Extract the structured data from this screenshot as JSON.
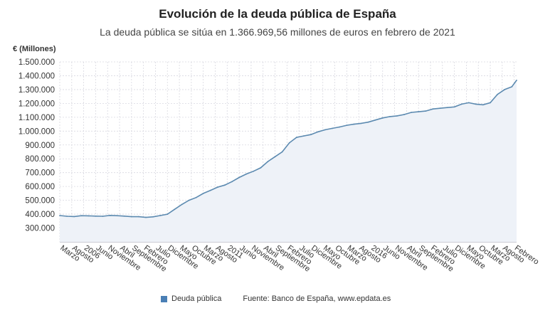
{
  "chart_data": {
    "type": "area",
    "title": "Evolución de la deuda pública de España",
    "subtitle": "La deuda pública se sitúa en 1.366.969,56 millones de euros en febrero de 2021",
    "ylabel": "€ (Millones)",
    "ylim": [
      200000,
      1500000
    ],
    "yticks": [
      300000,
      400000,
      500000,
      600000,
      700000,
      800000,
      900000,
      1000000,
      1100000,
      1200000,
      1300000,
      1400000,
      1500000
    ],
    "ytick_labels": [
      "300.000",
      "400.000",
      "500.000",
      "600.000",
      "700.000",
      "800.000",
      "900.000",
      "1.000.000",
      "1.100.000",
      "1.200.000",
      "1.300.000",
      "1.400.000",
      "1.500.000"
    ],
    "x_start": "2005-03",
    "x_end": "2021-02",
    "xtick_months": [
      "2005-03",
      "2005-08",
      "2006-01",
      "2006-06",
      "2006-11",
      "2007-04",
      "2007-09",
      "2008-02",
      "2008-07",
      "2008-12",
      "2009-05",
      "2009-10",
      "2010-03",
      "2010-08",
      "2011-01",
      "2011-06",
      "2011-11",
      "2012-04",
      "2012-09",
      "2013-02",
      "2013-07",
      "2013-12",
      "2014-05",
      "2014-10",
      "2015-03",
      "2015-08",
      "2016-01",
      "2016-06",
      "2016-11",
      "2017-04",
      "2017-09",
      "2018-02",
      "2018-07",
      "2018-12",
      "2019-05",
      "2019-10",
      "2020-03",
      "2020-08",
      "2021-01"
    ],
    "xtick_labels": [
      "Marzo",
      "Agosto",
      "2006",
      "Junio",
      "Noviembre",
      "Abril",
      "Septiembre",
      "Febrero",
      "Julio",
      "Diciembre",
      "Mayo",
      "Octubre",
      "Marzo",
      "Agosto",
      "2011",
      "Junio",
      "Noviembre",
      "Abril",
      "Septiembre",
      "Febrero",
      "Julio",
      "Diciembre",
      "Mayo",
      "Octubre",
      "Marzo",
      "Agosto",
      "2016",
      "Junio",
      "Noviembre",
      "Abril",
      "Septiembre",
      "Febrero",
      "Julio",
      "Diciembre",
      "Mayo",
      "Octubre",
      "Marzo",
      "Agosto",
      "Febrero"
    ],
    "series": [
      {
        "name": "Deuda pública",
        "points": [
          [
            "2005-03",
            390000
          ],
          [
            "2005-06",
            385000
          ],
          [
            "2005-09",
            383000
          ],
          [
            "2005-12",
            389000
          ],
          [
            "2006-03",
            388000
          ],
          [
            "2006-06",
            386000
          ],
          [
            "2006-09",
            385000
          ],
          [
            "2006-12",
            391000
          ],
          [
            "2007-03",
            389000
          ],
          [
            "2007-06",
            386000
          ],
          [
            "2007-09",
            382000
          ],
          [
            "2007-12",
            382000
          ],
          [
            "2008-03",
            377000
          ],
          [
            "2008-06",
            381000
          ],
          [
            "2008-09",
            390000
          ],
          [
            "2008-12",
            400000
          ],
          [
            "2009-03",
            435000
          ],
          [
            "2009-06",
            470000
          ],
          [
            "2009-09",
            500000
          ],
          [
            "2009-12",
            520000
          ],
          [
            "2010-03",
            550000
          ],
          [
            "2010-06",
            572000
          ],
          [
            "2010-09",
            595000
          ],
          [
            "2010-12",
            610000
          ],
          [
            "2011-03",
            635000
          ],
          [
            "2011-06",
            665000
          ],
          [
            "2011-09",
            690000
          ],
          [
            "2011-12",
            710000
          ],
          [
            "2012-03",
            735000
          ],
          [
            "2012-06",
            780000
          ],
          [
            "2012-09",
            815000
          ],
          [
            "2012-12",
            850000
          ],
          [
            "2013-03",
            915000
          ],
          [
            "2013-06",
            955000
          ],
          [
            "2013-09",
            965000
          ],
          [
            "2013-12",
            975000
          ],
          [
            "2014-03",
            995000
          ],
          [
            "2014-06",
            1010000
          ],
          [
            "2014-09",
            1020000
          ],
          [
            "2014-12",
            1030000
          ],
          [
            "2015-03",
            1042000
          ],
          [
            "2015-06",
            1050000
          ],
          [
            "2015-09",
            1056000
          ],
          [
            "2015-12",
            1065000
          ],
          [
            "2016-03",
            1080000
          ],
          [
            "2016-06",
            1095000
          ],
          [
            "2016-09",
            1105000
          ],
          [
            "2016-12",
            1110000
          ],
          [
            "2017-03",
            1120000
          ],
          [
            "2017-06",
            1135000
          ],
          [
            "2017-09",
            1140000
          ],
          [
            "2017-12",
            1145000
          ],
          [
            "2018-03",
            1160000
          ],
          [
            "2018-06",
            1165000
          ],
          [
            "2018-09",
            1170000
          ],
          [
            "2018-12",
            1175000
          ],
          [
            "2019-03",
            1195000
          ],
          [
            "2019-06",
            1205000
          ],
          [
            "2019-09",
            1195000
          ],
          [
            "2019-12",
            1190000
          ],
          [
            "2020-03",
            1205000
          ],
          [
            "2020-06",
            1265000
          ],
          [
            "2020-09",
            1300000
          ],
          [
            "2020-12",
            1320000
          ],
          [
            "2021-02",
            1366970
          ]
        ]
      }
    ],
    "grid": true,
    "legend": "bottom",
    "source": "Fuente: Banco de España, www.epdata.es",
    "colors": {
      "line": "#5c8ab0",
      "fill": "#eef2f8",
      "grid": "#d8d8e0",
      "legend": "#4a7fb5"
    }
  }
}
